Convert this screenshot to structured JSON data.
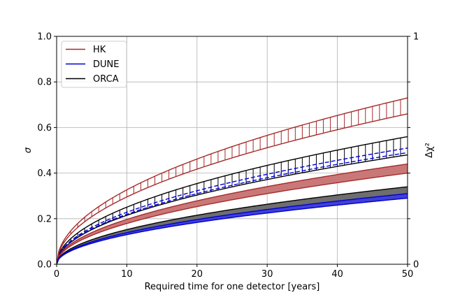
{
  "chart_data": {
    "type": "area",
    "title": "",
    "xlabel": "Required time for one detector [years]",
    "ylabel": "σ",
    "y2label": "Δχ²",
    "xlim": [
      0,
      50
    ],
    "ylim": [
      0,
      1.0
    ],
    "grid": true,
    "x_ticks": [
      0,
      10,
      20,
      30,
      40,
      50
    ],
    "x_tick_labels": [
      "0",
      "10",
      "20",
      "30",
      "40",
      "50"
    ],
    "y_ticks": [
      0.0,
      0.2,
      0.4,
      0.6,
      0.8,
      1.0
    ],
    "y_tick_labels": [
      "0.0",
      "0.2",
      "0.4",
      "0.6",
      "0.8",
      "1.0"
    ],
    "y2_ticks": [
      0,
      1
    ],
    "y2_tick_labels": [
      "0",
      "1"
    ],
    "legend_position": "top-left",
    "legend": [
      {
        "name": "HK",
        "color": "#a52a2a"
      },
      {
        "name": "DUNE",
        "color": "#0000cd"
      },
      {
        "name": "ORCA",
        "color": "#000000"
      }
    ],
    "series": [
      {
        "name": "HK",
        "band": "filled",
        "color": "#a52a2a",
        "fill": "#c97878",
        "lower_at_50": 0.4,
        "upper_at_50": 0.44,
        "line_style": "solid"
      },
      {
        "name": "HK",
        "band": "hatched",
        "color": "#a52a2a",
        "lower_at_50": 0.66,
        "upper_at_50": 0.73,
        "line_style": "solid"
      },
      {
        "name": "DUNE",
        "band": "filled",
        "color": "#0000cd",
        "fill": "#4040d8",
        "lower_at_50": 0.29,
        "upper_at_50": 0.31,
        "line_style": "solid"
      },
      {
        "name": "DUNE",
        "band": "hatched",
        "color": "#0000cd",
        "lower_at_50": 0.49,
        "upper_at_50": 0.51,
        "line_style": "dashed"
      },
      {
        "name": "ORCA",
        "band": "filled",
        "color": "#000000",
        "fill": "#6e6e6e",
        "lower_at_50": 0.3,
        "upper_at_50": 0.34,
        "line_style": "solid"
      },
      {
        "name": "ORCA",
        "band": "hatched",
        "color": "#000000",
        "lower_at_50": 0.48,
        "upper_at_50": 0.56,
        "line_style": "solid"
      }
    ],
    "curve_model": "sigma(t) = value_at_50 * sqrt(t / 50)"
  }
}
